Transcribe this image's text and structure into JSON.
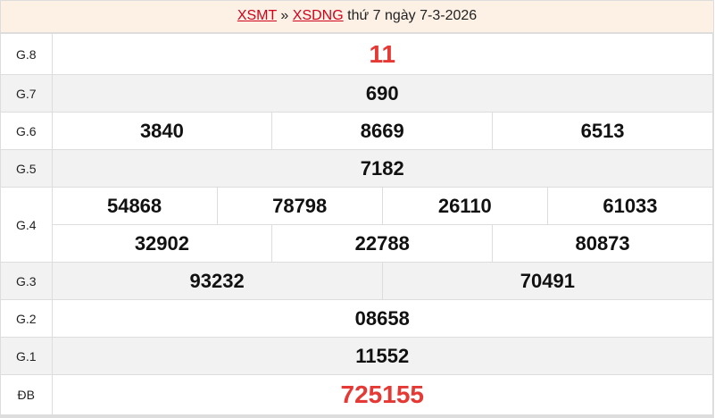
{
  "header": {
    "link1": "XSMT",
    "sep": "»",
    "link2": "XSDNG",
    "text": "thứ 7 ngày 7-3-2026"
  },
  "colors": {
    "accent": "#e53935",
    "header_bg": "#fdf1e6"
  },
  "rows": [
    {
      "label": "G.8",
      "values": [
        "11"
      ]
    },
    {
      "label": "G.7",
      "values": [
        "690"
      ]
    },
    {
      "label": "G.6",
      "values": [
        "3840",
        "8669",
        "6513"
      ]
    },
    {
      "label": "G.5",
      "values": [
        "7182"
      ]
    },
    {
      "label": "G.4",
      "values": [
        "54868",
        "78798",
        "26110",
        "61033",
        "32902",
        "22788",
        "80873"
      ]
    },
    {
      "label": "G.3",
      "values": [
        "93232",
        "70491"
      ]
    },
    {
      "label": "G.2",
      "values": [
        "08658"
      ]
    },
    {
      "label": "G.1",
      "values": [
        "11552"
      ]
    },
    {
      "label": "ĐB",
      "values": [
        "725155"
      ]
    }
  ]
}
